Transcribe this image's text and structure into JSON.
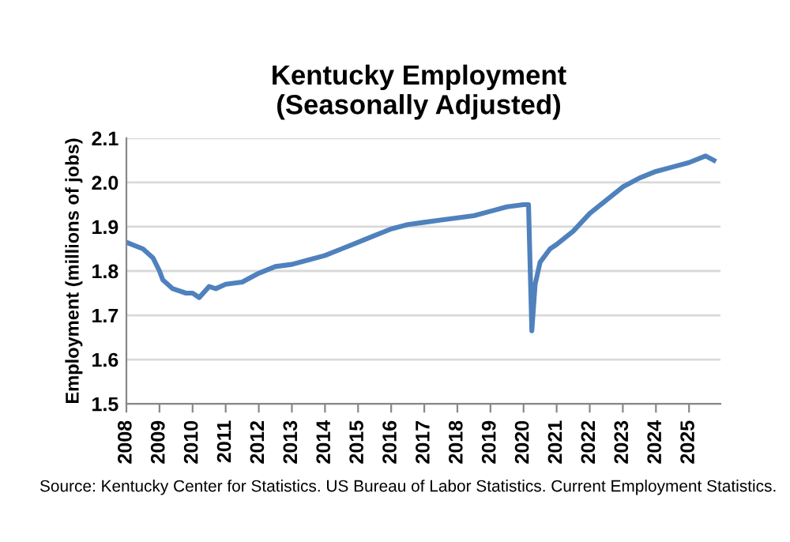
{
  "chart_data": {
    "type": "line",
    "title": "Kentucky Employment\n(Seasonally Adjusted)",
    "ylabel": "Employment (millions of jobs)",
    "annotations": [
      "Source: Kentucky Center for Statistics. US Bureau of Labor Statistics. Current Employment Statistics."
    ],
    "x": [
      2008.0,
      2008.5,
      2008.8,
      2009.0,
      2009.1,
      2009.4,
      2009.8,
      2010.0,
      2010.2,
      2010.5,
      2010.7,
      2011.0,
      2011.5,
      2012.0,
      2012.5,
      2013.0,
      2013.5,
      2014.0,
      2014.5,
      2015.0,
      2015.5,
      2016.0,
      2016.5,
      2017.0,
      2017.5,
      2018.0,
      2018.5,
      2019.0,
      2019.5,
      2020.0,
      2020.15,
      2020.25,
      2020.35,
      2020.5,
      2020.8,
      2021.0,
      2021.5,
      2022.0,
      2022.5,
      2023.0,
      2023.5,
      2024.0,
      2024.5,
      2025.0,
      2025.5,
      2025.75
    ],
    "series": [
      {
        "color": "#4f81bd",
        "values": [
          1.865,
          1.85,
          1.83,
          1.8,
          1.78,
          1.76,
          1.75,
          1.75,
          1.74,
          1.765,
          1.76,
          1.77,
          1.775,
          1.795,
          1.81,
          1.815,
          1.825,
          1.835,
          1.85,
          1.865,
          1.88,
          1.895,
          1.905,
          1.91,
          1.915,
          1.92,
          1.925,
          1.935,
          1.945,
          1.95,
          1.95,
          1.665,
          1.77,
          1.82,
          1.85,
          1.86,
          1.89,
          1.93,
          1.96,
          1.99,
          2.01,
          2.025,
          2.035,
          2.045,
          2.06,
          2.05
        ]
      }
    ],
    "xlim": [
      2008,
      2025.95
    ],
    "xticks": [
      2008,
      2009,
      2010,
      2011,
      2012,
      2013,
      2014,
      2015,
      2016,
      2017,
      2018,
      2019,
      2020,
      2021,
      2022,
      2023,
      2024,
      2025
    ],
    "ylim": [
      1.5,
      2.1
    ],
    "yticks": [
      {
        "value": 1.5,
        "label": "1.5"
      },
      {
        "value": 1.6,
        "label": "1.6"
      },
      {
        "value": 1.7,
        "label": "1.7"
      },
      {
        "value": 1.8,
        "label": "1.8"
      },
      {
        "value": 1.9,
        "label": "1.9"
      },
      {
        "value": 2.0,
        "label": "2.0"
      },
      {
        "value": 2.1,
        "label": "2.1"
      }
    ],
    "grid": "y",
    "legend": false,
    "marker": "none",
    "line_style": "solid"
  }
}
